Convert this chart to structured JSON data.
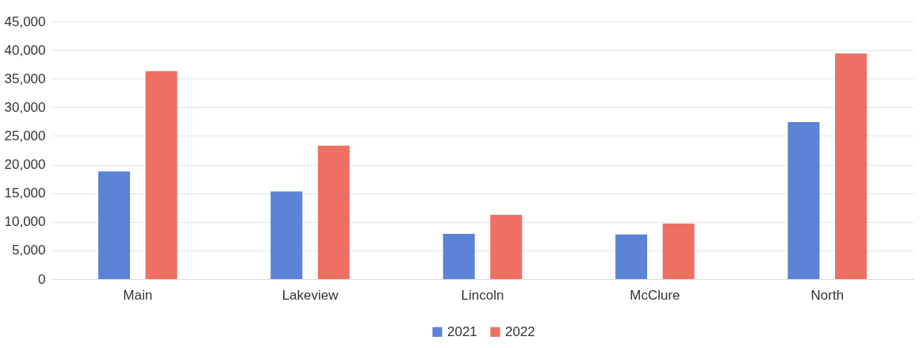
{
  "chart_data": {
    "type": "bar",
    "categories": [
      "Main",
      "Lakeview",
      "Lincoln",
      "McClure",
      "North"
    ],
    "series": [
      {
        "name": "2021",
        "color": "#5b82d4",
        "values": [
          18800,
          15300,
          7900,
          7800,
          27400
        ]
      },
      {
        "name": "2022",
        "color": "#ee6f63",
        "values": [
          36300,
          23300,
          11200,
          9700,
          39400
        ]
      }
    ],
    "ylim": [
      0,
      45000
    ],
    "yticks": [
      0,
      {
        "value": 5000,
        "label": "5,000"
      },
      {
        "value": 10000,
        "label": "10,000"
      },
      {
        "value": 15000,
        "label": "15,000"
      },
      {
        "value": 20000,
        "label": "20,000"
      },
      {
        "value": 25000,
        "label": "25,000"
      },
      {
        "value": 30000,
        "label": "30,000"
      },
      {
        "value": 35000,
        "label": "35,000"
      },
      {
        "value": 40000,
        "label": "40,000"
      },
      {
        "value": 45000,
        "label": "45,000"
      }
    ],
    "grid": "y",
    "legend": "bottom"
  }
}
